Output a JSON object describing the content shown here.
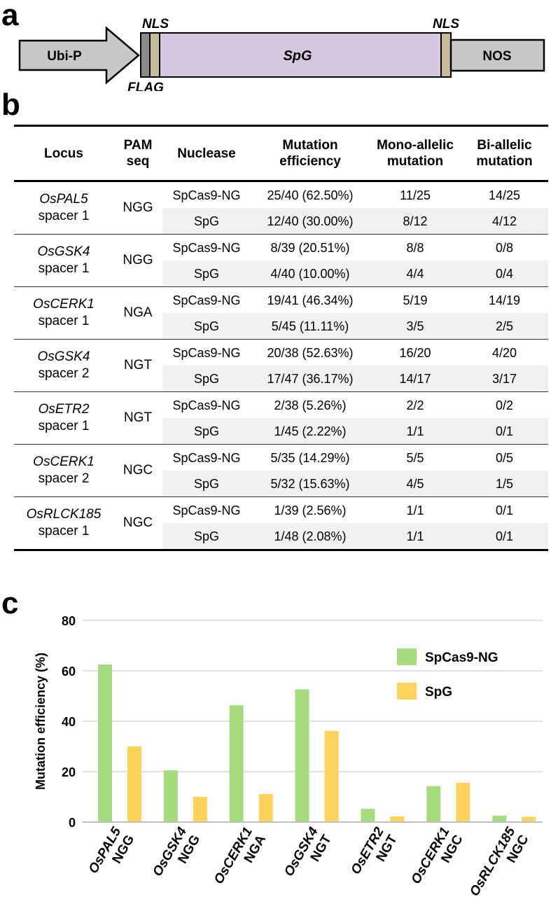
{
  "panels": {
    "a": "a",
    "b": "b",
    "c": "c"
  },
  "construct": {
    "promoter": "Ubi-P",
    "nls_left": "NLS",
    "flag": "FLAG",
    "enzyme": "SpG",
    "nls_right": "NLS",
    "terminator": "NOS",
    "colors": {
      "box": "#c8c8c8",
      "enzyme": "#d5c8e0",
      "nls": "#c9bc9d",
      "flag": "#8a8a8a"
    }
  },
  "table": {
    "headers": {
      "locus": "Locus",
      "pam_1": "PAM",
      "pam_2": "seq",
      "nuclease": "Nuclease",
      "eff_1": "Mutation",
      "eff_2": "efficiency",
      "mono_1": "Mono-allelic",
      "mono_2": "mutation",
      "bi_1": "Bi-allelic",
      "bi_2": "mutation"
    },
    "groups": [
      {
        "gene": "OsPAL5",
        "spacer": "spacer 1",
        "pam": "NGG",
        "rows": [
          {
            "nuclease": "SpCas9-NG",
            "efficiency": "25/40 (62.50%)",
            "mono": "11/25",
            "bi": "14/25"
          },
          {
            "nuclease": "SpG",
            "efficiency": "12/40 (30.00%)",
            "mono": "8/12",
            "bi": "4/12"
          }
        ]
      },
      {
        "gene": "OsGSK4",
        "spacer": "spacer 1",
        "pam": "NGG",
        "rows": [
          {
            "nuclease": "SpCas9-NG",
            "efficiency": "8/39 (20.51%)",
            "mono": "8/8",
            "bi": "0/8"
          },
          {
            "nuclease": "SpG",
            "efficiency": "4/40 (10.00%)",
            "mono": "4/4",
            "bi": "0/4"
          }
        ]
      },
      {
        "gene": "OsCERK1",
        "spacer": "spacer 1",
        "pam": "NGA",
        "rows": [
          {
            "nuclease": "SpCas9-NG",
            "efficiency": "19/41 (46.34%)",
            "mono": "5/19",
            "bi": "14/19"
          },
          {
            "nuclease": "SpG",
            "efficiency": "5/45 (11.11%)",
            "mono": "3/5",
            "bi": "2/5"
          }
        ]
      },
      {
        "gene": "OsGSK4",
        "spacer": "spacer 2",
        "pam": "NGT",
        "rows": [
          {
            "nuclease": "SpCas9-NG",
            "efficiency": "20/38 (52.63%)",
            "mono": "16/20",
            "bi": "4/20"
          },
          {
            "nuclease": "SpG",
            "efficiency": "17/47 (36.17%)",
            "mono": "14/17",
            "bi": "3/17"
          }
        ]
      },
      {
        "gene": "OsETR2",
        "spacer": "spacer 1",
        "pam": "NGT",
        "rows": [
          {
            "nuclease": "SpCas9-NG",
            "efficiency": "2/38 (5.26%)",
            "mono": "2/2",
            "bi": "0/2"
          },
          {
            "nuclease": "SpG",
            "efficiency": "1/45 (2.22%)",
            "mono": "1/1",
            "bi": "0/1"
          }
        ]
      },
      {
        "gene": "OsCERK1",
        "spacer": "spacer 2",
        "pam": "NGC",
        "rows": [
          {
            "nuclease": "SpCas9-NG",
            "efficiency": "5/35 (14.29%)",
            "mono": "5/5",
            "bi": "0/5"
          },
          {
            "nuclease": "SpG",
            "efficiency": "5/32 (15.63%)",
            "mono": "4/5",
            "bi": "1/5"
          }
        ]
      },
      {
        "gene": "OsRLCK185",
        "spacer": "spacer 1",
        "pam": "NGC",
        "rows": [
          {
            "nuclease": "SpCas9-NG",
            "efficiency": "1/39 (2.56%)",
            "mono": "1/1",
            "bi": "0/1"
          },
          {
            "nuclease": "SpG",
            "efficiency": "1/48 (2.08%)",
            "mono": "1/1",
            "bi": "0/1"
          }
        ]
      }
    ]
  },
  "chart_data": {
    "type": "bar",
    "title": "",
    "xlabel": "",
    "ylabel": "Mutation efficiency (%)",
    "ylim": [
      0,
      80
    ],
    "yticks": [
      0,
      20,
      40,
      60,
      80
    ],
    "grid": true,
    "legend_position": "top-right",
    "categories": [
      {
        "gene": "OsPAL5",
        "pam": "NGG"
      },
      {
        "gene": "OsGSK4",
        "pam": "NGG"
      },
      {
        "gene": "OsCERK1",
        "pam": "NGA"
      },
      {
        "gene": "OsGSK4",
        "pam": "NGT"
      },
      {
        "gene": "OsETR2",
        "pam": "NGT"
      },
      {
        "gene": "OsCERK1",
        "pam": "NGC"
      },
      {
        "gene": "OsRLCK185",
        "pam": "NGC"
      }
    ],
    "series": [
      {
        "name": "SpCas9-NG",
        "color": "#a6dc7e",
        "values": [
          62.5,
          20.51,
          46.34,
          52.63,
          5.26,
          14.29,
          2.56
        ]
      },
      {
        "name": "SpG",
        "color": "#fdd35c",
        "values": [
          30.0,
          10.0,
          11.11,
          36.17,
          2.22,
          15.63,
          2.08
        ]
      }
    ]
  }
}
